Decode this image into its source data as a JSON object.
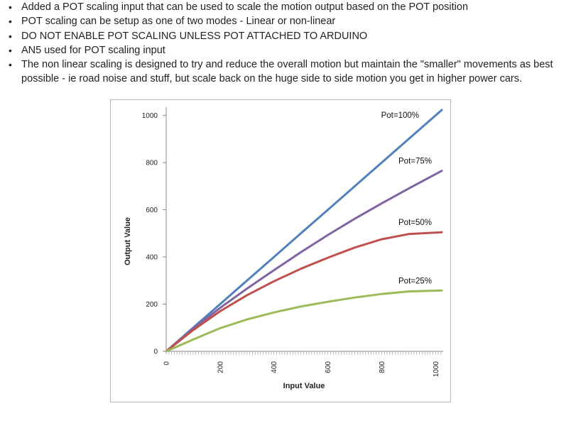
{
  "notes": [
    "Added a POT scaling input that can be used to scale the motion output based on the POT position",
    "POT scaling can be setup as one of two modes - Linear or non-linear",
    "DO NOT ENABLE POT SCALING UNLESS POT ATTACHED TO ARDUINO",
    "AN5 used for POT scaling input",
    "The non linear scaling is designed to try and reduce the overall motion but maintain the \"smaller\" movements as best possible - ie road noise and stuff, but scale back on the huge side to side motion you get in higher power cars."
  ],
  "chart_data": {
    "type": "line",
    "title": "",
    "xlabel": "Input Value",
    "ylabel": "Output Value",
    "xlim": [
      0,
      1023
    ],
    "ylim": [
      0,
      1023
    ],
    "xticks": [
      "0",
      "200",
      "400",
      "600",
      "800",
      "1000"
    ],
    "yticks": [
      "0",
      "200",
      "400",
      "600",
      "800",
      "1000"
    ],
    "grid": false,
    "series": [
      {
        "name": "Pot=100%",
        "color": "#4f81bd",
        "x": [
          0,
          100,
          200,
          300,
          400,
          500,
          600,
          700,
          800,
          900,
          1023
        ],
        "y": [
          0,
          100,
          200,
          300,
          400,
          500,
          600,
          700,
          800,
          900,
          1023
        ]
      },
      {
        "name": "Pot=75%",
        "color": "#8064a2",
        "x": [
          0,
          100,
          200,
          300,
          400,
          500,
          600,
          700,
          800,
          900,
          1023
        ],
        "y": [
          0,
          96,
          184,
          266,
          344,
          420,
          493,
          562,
          627,
          690,
          765
        ]
      },
      {
        "name": "Pot=50%",
        "color": "#c0504d",
        "x": [
          0,
          100,
          200,
          300,
          400,
          500,
          600,
          700,
          800,
          900,
          1023
        ],
        "y": [
          0,
          90,
          170,
          238,
          297,
          350,
          397,
          440,
          475,
          497,
          505
        ]
      },
      {
        "name": "Pot=25%",
        "color": "#9bbb59",
        "x": [
          0,
          100,
          200,
          300,
          400,
          500,
          600,
          700,
          800,
          900,
          1023
        ],
        "y": [
          0,
          50,
          98,
          135,
          165,
          190,
          210,
          228,
          243,
          254,
          258
        ]
      }
    ]
  }
}
